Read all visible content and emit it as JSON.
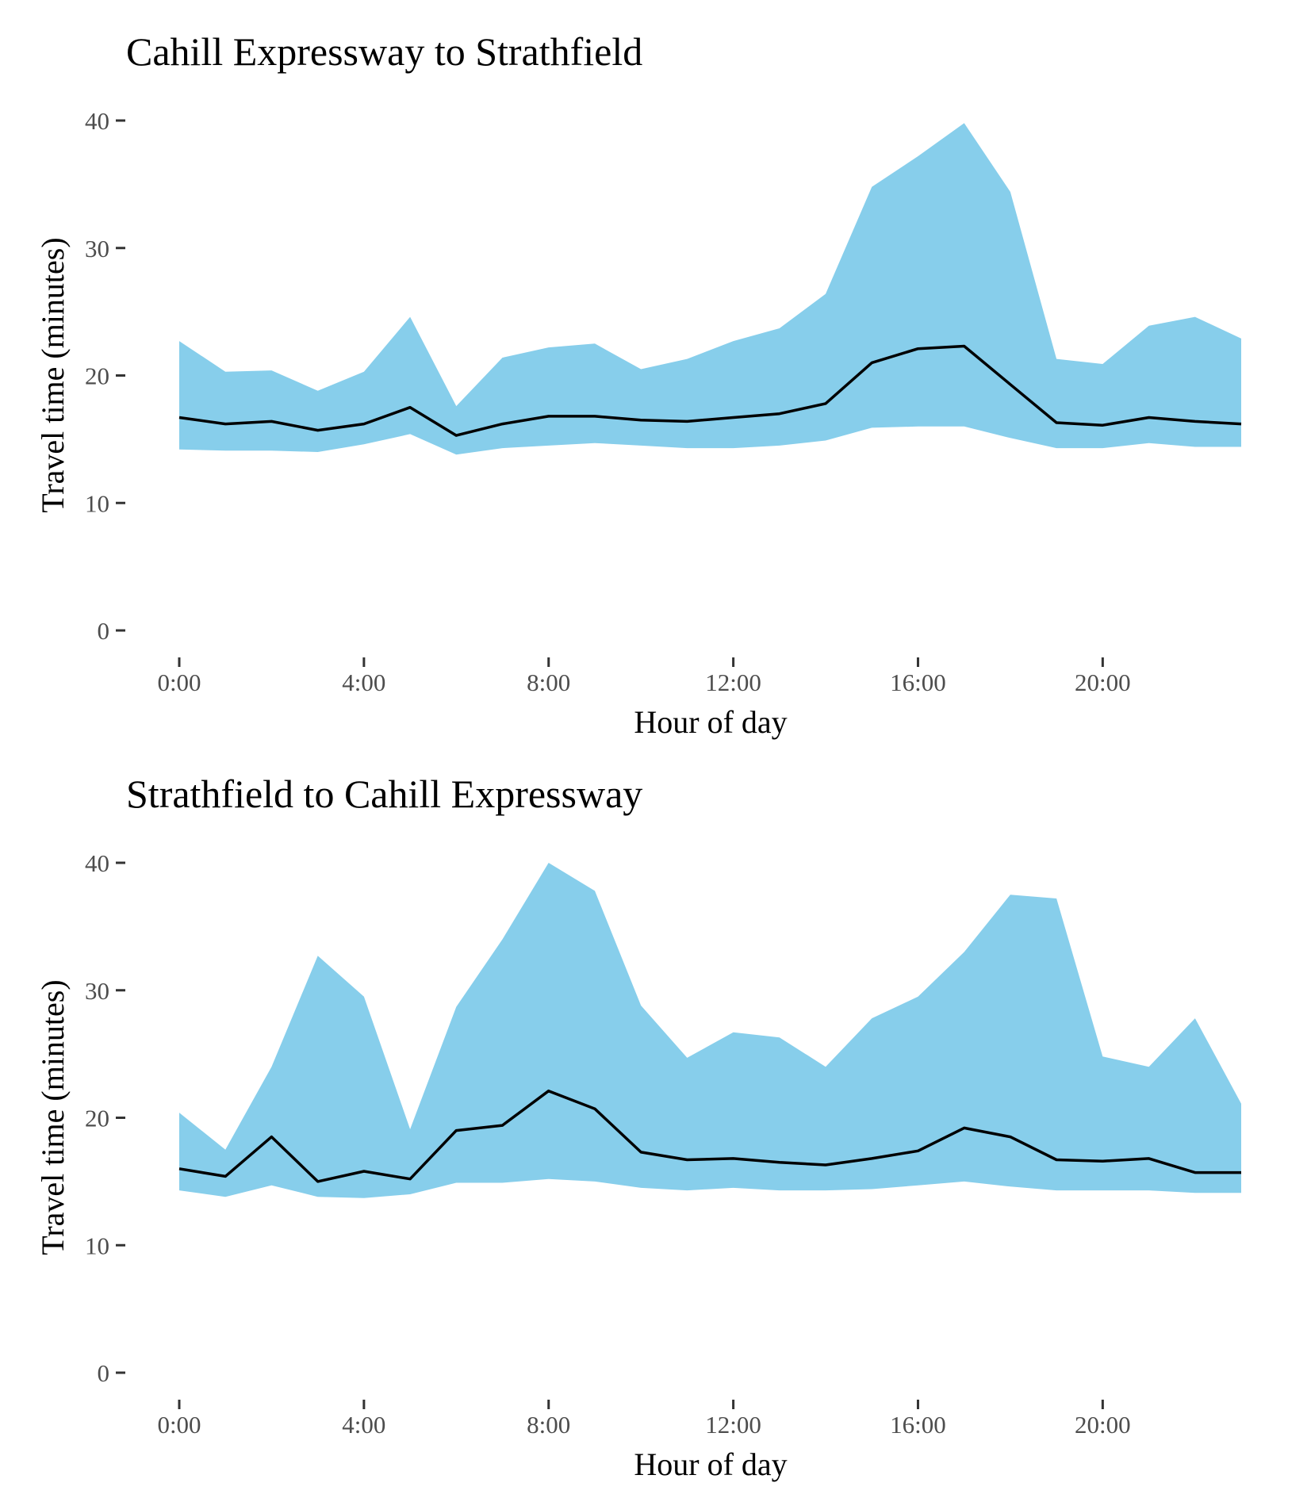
{
  "colors": {
    "band": "#87CEEB",
    "line": "#000000"
  },
  "chart_data": [
    {
      "type": "area",
      "title": "Cahill Expressway to Strathfield",
      "xlabel": "Hour of day",
      "ylabel": "Travel time (minutes)",
      "x": [
        0,
        1,
        2,
        3,
        4,
        5,
        6,
        7,
        8,
        9,
        10,
        11,
        12,
        13,
        14,
        15,
        16,
        17,
        18,
        19,
        20,
        21,
        22,
        23
      ],
      "xlim": [
        0,
        23
      ],
      "ylim": [
        0,
        40
      ],
      "xticks": [
        0,
        4,
        8,
        12,
        16,
        20
      ],
      "xtick_labels": [
        "0:00",
        "4:00",
        "8:00",
        "12:00",
        "16:00",
        "20:00"
      ],
      "yticks": [
        0,
        10,
        20,
        30,
        40
      ],
      "ytick_labels": [
        "0",
        "10",
        "20",
        "30",
        "40"
      ],
      "grid": false,
      "legend": "none",
      "series": [
        {
          "role": "band-upper",
          "values": [
            22.7,
            20.3,
            20.4,
            18.8,
            20.3,
            24.6,
            17.6,
            21.4,
            22.2,
            22.5,
            20.5,
            21.3,
            22.7,
            23.7,
            26.4,
            34.8,
            37.2,
            39.8,
            34.4,
            21.3,
            20.9,
            23.9,
            24.6,
            22.9
          ]
        },
        {
          "role": "band-lower",
          "values": [
            14.2,
            14.1,
            14.1,
            14.0,
            14.6,
            15.4,
            13.8,
            14.3,
            14.5,
            14.7,
            14.5,
            14.3,
            14.3,
            14.5,
            14.9,
            15.9,
            16.0,
            16.0,
            15.1,
            14.3,
            14.3,
            14.7,
            14.4,
            14.4
          ]
        },
        {
          "role": "median",
          "values": [
            16.7,
            16.2,
            16.4,
            15.7,
            16.2,
            17.5,
            15.3,
            16.2,
            16.8,
            16.8,
            16.5,
            16.4,
            16.7,
            17.0,
            17.8,
            21.0,
            22.1,
            22.3,
            19.3,
            16.3,
            16.1,
            16.7,
            16.4,
            16.2
          ]
        }
      ]
    },
    {
      "type": "area",
      "title": "Strathfield to Cahill Expressway",
      "xlabel": "Hour of day",
      "ylabel": "Travel time (minutes)",
      "x": [
        0,
        1,
        2,
        3,
        4,
        5,
        6,
        7,
        8,
        9,
        10,
        11,
        12,
        13,
        14,
        15,
        16,
        17,
        18,
        19,
        20,
        21,
        22,
        23
      ],
      "xlim": [
        0,
        23
      ],
      "ylim": [
        0,
        40
      ],
      "xticks": [
        0,
        4,
        8,
        12,
        16,
        20
      ],
      "xtick_labels": [
        "0:00",
        "4:00",
        "8:00",
        "12:00",
        "16:00",
        "20:00"
      ],
      "yticks": [
        0,
        10,
        20,
        30,
        40
      ],
      "ytick_labels": [
        "0",
        "10",
        "20",
        "30",
        "40"
      ],
      "grid": false,
      "legend": "none",
      "series": [
        {
          "role": "band-upper",
          "values": [
            20.4,
            17.5,
            24.0,
            32.7,
            29.5,
            19.1,
            28.7,
            34.0,
            40.0,
            37.8,
            28.8,
            24.7,
            26.7,
            26.3,
            24.0,
            27.8,
            29.5,
            33.0,
            37.5,
            37.2,
            24.8,
            24.0,
            27.8,
            21.1
          ]
        },
        {
          "role": "band-lower",
          "values": [
            14.3,
            13.8,
            14.7,
            13.8,
            13.7,
            14.0,
            14.9,
            14.9,
            15.2,
            15.0,
            14.5,
            14.3,
            14.5,
            14.3,
            14.3,
            14.4,
            14.7,
            15.0,
            14.6,
            14.3,
            14.3,
            14.3,
            14.1,
            14.1
          ]
        },
        {
          "role": "median",
          "values": [
            16.0,
            15.4,
            18.5,
            15.0,
            15.8,
            15.2,
            19.0,
            19.4,
            22.1,
            20.7,
            17.3,
            16.7,
            16.8,
            16.5,
            16.3,
            16.8,
            17.4,
            19.2,
            18.5,
            16.7,
            16.6,
            16.8,
            15.7,
            15.7
          ]
        }
      ]
    }
  ]
}
